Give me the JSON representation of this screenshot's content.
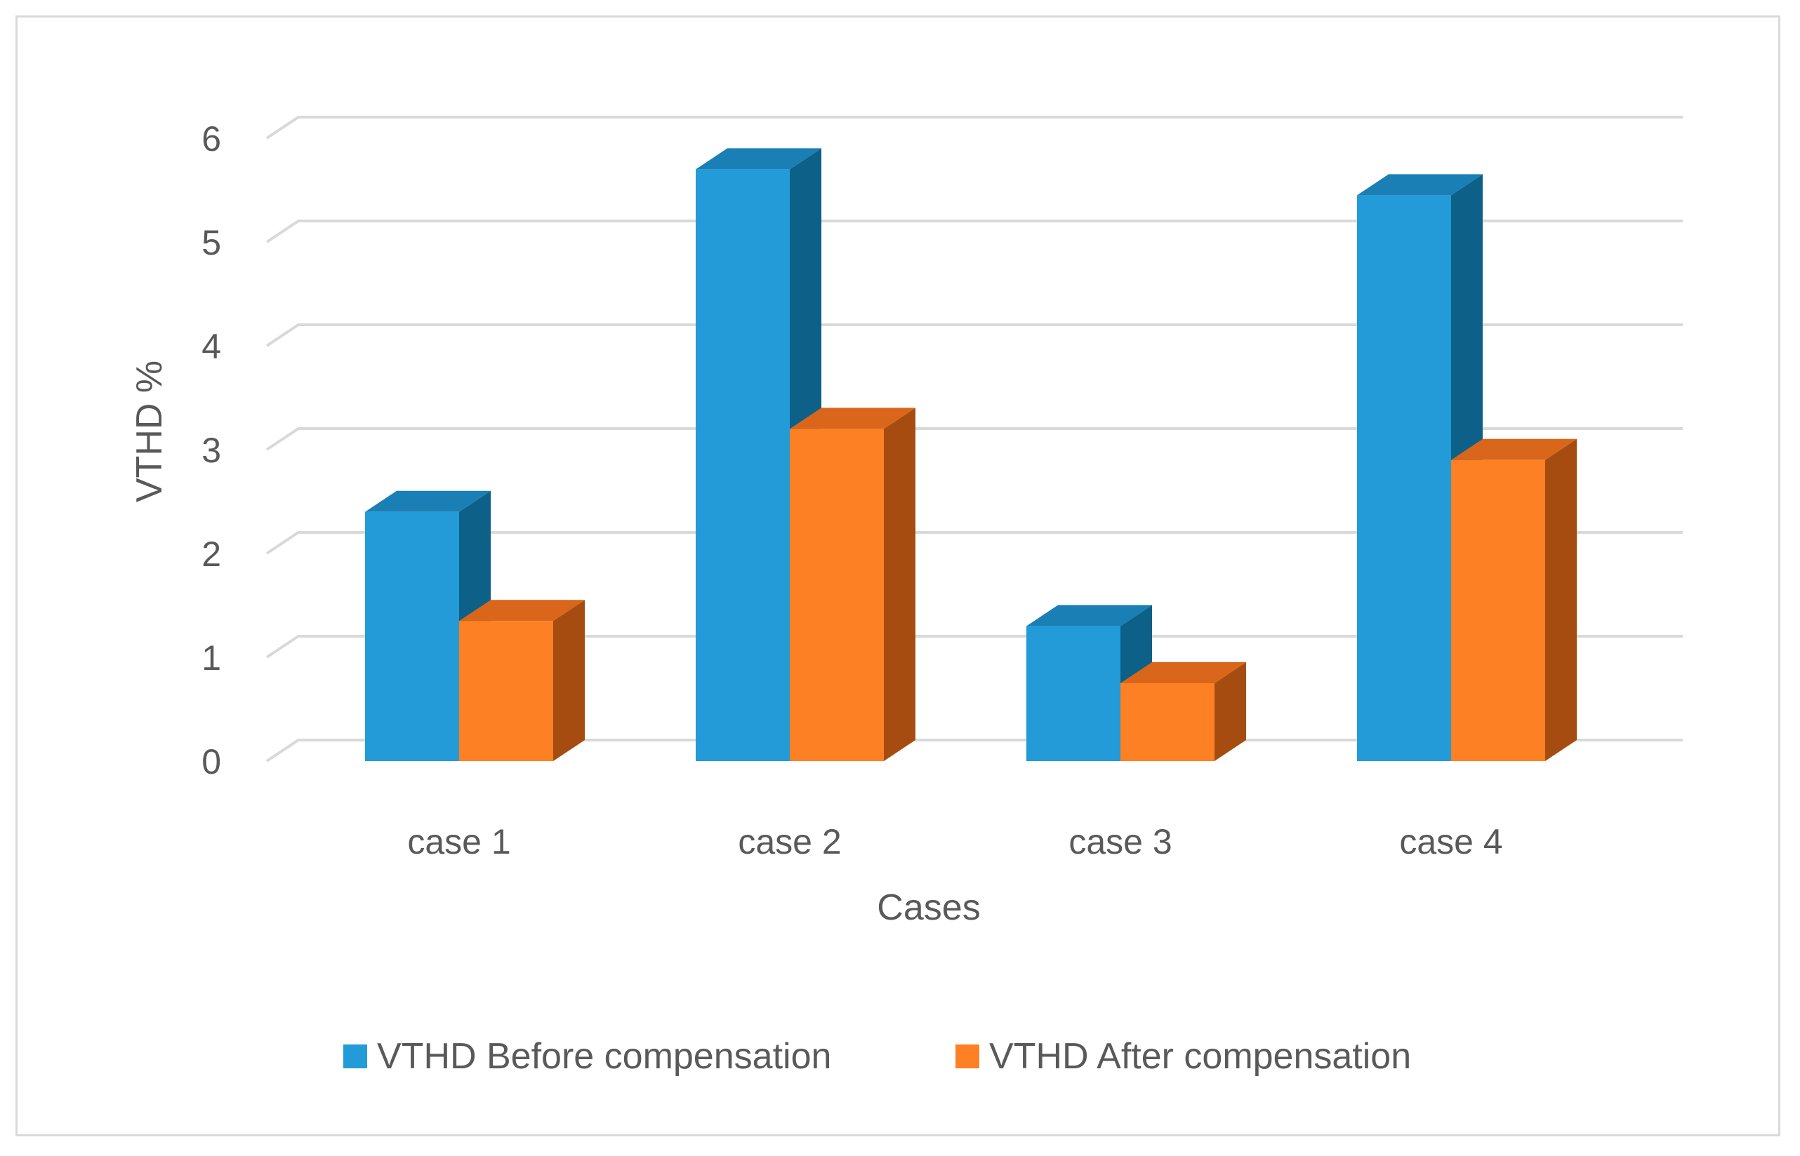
{
  "chart_data": {
    "type": "bar",
    "style": "3d-clustered-column",
    "title": "",
    "xlabel": "Cases",
    "ylabel": "VTHD  %",
    "categories": [
      "case 1",
      "case 2",
      "case 3",
      "case 4"
    ],
    "series": [
      {
        "name": "VTHD Before compensation",
        "values": [
          2.4,
          5.7,
          1.3,
          5.45
        ]
      },
      {
        "name": "VTHD After compensation",
        "values": [
          1.35,
          3.2,
          0.75,
          2.9
        ]
      }
    ],
    "ylim": [
      0,
      6
    ],
    "yticks": [
      0,
      1,
      2,
      3,
      4,
      5,
      6
    ],
    "ytick_labels": [
      "0",
      "1",
      "2",
      "3",
      "4",
      "5",
      "6"
    ],
    "grid": true,
    "legend_position": "bottom"
  },
  "colors": {
    "series_front": [
      "#229bd8",
      "#fd8025"
    ],
    "series_top": [
      "#1a7fb4",
      "#d9661a"
    ],
    "series_side": [
      "#0d6088",
      "#a64c10"
    ],
    "grid": "#d9d9d9",
    "text": "#595959"
  }
}
